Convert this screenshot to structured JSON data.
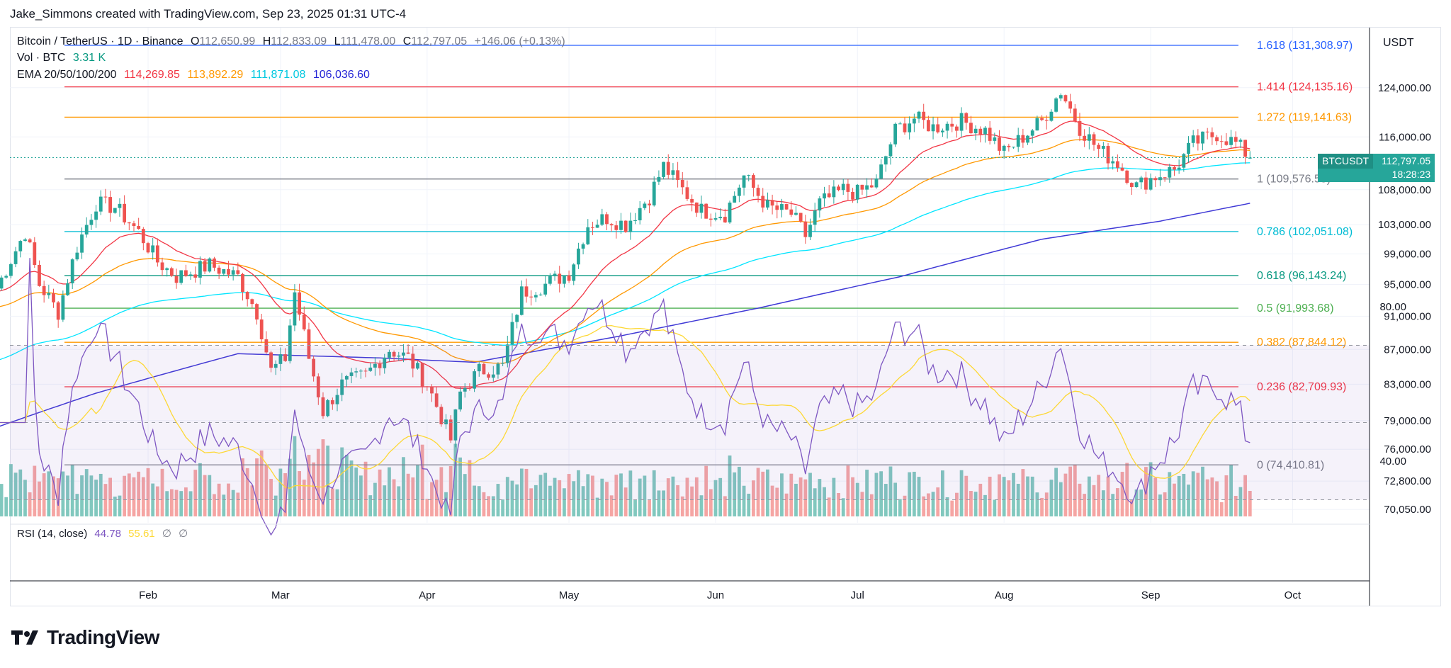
{
  "header": {
    "credit": "Jake_Simmons created with TradingView.com, Sep 23, 2025 01:31 UTC-4"
  },
  "legend": {
    "symbol": "Bitcoin / TetherUS · 1D · Binance",
    "o_label": "O",
    "o_val": "112,650.99",
    "h_label": "H",
    "h_val": "112,833.09",
    "l_label": "L",
    "l_val": "111,478.00",
    "c_label": "C",
    "c_val": "112,797.05",
    "change": "+146.06 (+0.13%)",
    "vol_label": "Vol · BTC",
    "vol_val": "3.31 K",
    "ema_label": "EMA 20/50/100/200",
    "ema20": "114,269.85",
    "ema50": "113,892.29",
    "ema100": "111,871.08",
    "ema200": "106,036.60",
    "rsi_label": "RSI (14, close)",
    "rsi_val": "44.78",
    "rsi_ma": "55.61",
    "rsi_x1": "∅",
    "rsi_x2": "∅"
  },
  "price_badge": {
    "symbol": "BTCUSDT",
    "price": "112,797.05",
    "countdown": "18:28:23"
  },
  "axis": {
    "currency": "USDT",
    "y_ticks": [
      {
        "label": "124,000.00",
        "v": 124000
      },
      {
        "label": "116,000.00",
        "v": 116000
      },
      {
        "label": "108,000.00",
        "v": 108000
      },
      {
        "label": "103,000.00",
        "v": 103000
      },
      {
        "label": "99,000.00",
        "v": 99000
      },
      {
        "label": "95,000.00",
        "v": 95000
      },
      {
        "label": "91,000.00",
        "v": 91000
      },
      {
        "label": "87,000.00",
        "v": 87000
      },
      {
        "label": "83,000.00",
        "v": 83000
      },
      {
        "label": "79,000.00",
        "v": 79000
      },
      {
        "label": "76,000.00",
        "v": 76000
      },
      {
        "label": "72,800.00",
        "v": 72800
      },
      {
        "label": "70,050.00",
        "v": 70050
      }
    ],
    "rsi_ticks": [
      {
        "label": "80.00",
        "v": 80
      },
      {
        "label": "40.00",
        "v": 40
      }
    ],
    "x_ticks": [
      {
        "label": "Feb",
        "d": 31
      },
      {
        "label": "Mar",
        "d": 59
      },
      {
        "label": "Apr",
        "d": 90
      },
      {
        "label": "May",
        "d": 120
      },
      {
        "label": "Jun",
        "d": 151
      },
      {
        "label": "Jul",
        "d": 181
      },
      {
        "label": "Aug",
        "d": 212
      },
      {
        "label": "Sep",
        "d": 243
      },
      {
        "label": "Oct",
        "d": 273
      }
    ]
  },
  "fib_levels": [
    {
      "label": "1.618 (131,308.97)",
      "v": 131308.97,
      "color": "#2962ff"
    },
    {
      "label": "1.414 (124,135.16)",
      "v": 124135.16,
      "color": "#f23645"
    },
    {
      "label": "1.272 (119,141.63)",
      "v": 119141.63,
      "color": "#ff9800"
    },
    {
      "label": "1 (109,576.55)",
      "v": 109576.55,
      "color": "#787b86"
    },
    {
      "label": "0.786 (102,051.08)",
      "v": 102051.08,
      "color": "#00bcd4"
    },
    {
      "label": "0.618 (96,143.24)",
      "v": 96143.24,
      "color": "#089981"
    },
    {
      "label": "0.5 (91,993.68)",
      "v": 91993.68,
      "color": "#4caf50"
    },
    {
      "label": "0.382 (87,844.12)",
      "v": 87844.12,
      "color": "#ff9800"
    },
    {
      "label": "0.236 (82,709.93)",
      "v": 82709.93,
      "color": "#f23645"
    },
    {
      "label": "0 (74,410.81)",
      "v": 74410.81,
      "color": "#787b86"
    }
  ],
  "colors": {
    "up": "#26a69a",
    "down": "#ef5350",
    "ema20": "#f23645",
    "ema50": "#ff9800",
    "ema100": "#00e5ff",
    "ema200": "#3f39d6",
    "rsi": "#7e57c2",
    "rsi_ma": "#fdd835"
  },
  "brand": {
    "name": "TradingView"
  },
  "chart_data": {
    "type": "candlestick",
    "title": "Bitcoin / TetherUS · 1D · Binance",
    "x_unit": "day of 2025 (0 = Jan 1)",
    "ylim": [
      68800,
      134500
    ],
    "log_scale": true,
    "grid": true,
    "key_points": [
      {
        "d": -1,
        "c": 94500
      },
      {
        "d": 5,
        "c": 102000
      },
      {
        "d": 8,
        "c": 95000
      },
      {
        "d": 12,
        "c": 91500
      },
      {
        "d": 16,
        "c": 100000
      },
      {
        "d": 20,
        "c": 106000
      },
      {
        "d": 24,
        "c": 105500
      },
      {
        "d": 29,
        "c": 102000
      },
      {
        "d": 33,
        "c": 98000
      },
      {
        "d": 37,
        "c": 96000
      },
      {
        "d": 44,
        "c": 97500
      },
      {
        "d": 50,
        "c": 96000
      },
      {
        "d": 54,
        "c": 91500
      },
      {
        "d": 57,
        "c": 84500
      },
      {
        "d": 60,
        "c": 86000
      },
      {
        "d": 62,
        "c": 94000
      },
      {
        "d": 65,
        "c": 86000
      },
      {
        "d": 68,
        "c": 80000
      },
      {
        "d": 72,
        "c": 83000
      },
      {
        "d": 77,
        "c": 84000
      },
      {
        "d": 82,
        "c": 87000
      },
      {
        "d": 86,
        "c": 86000
      },
      {
        "d": 90,
        "c": 83000
      },
      {
        "d": 95,
        "c": 77000
      },
      {
        "d": 97,
        "c": 82000
      },
      {
        "d": 101,
        "c": 84500
      },
      {
        "d": 106,
        "c": 85000
      },
      {
        "d": 110,
        "c": 94000
      },
      {
        "d": 115,
        "c": 95000
      },
      {
        "d": 120,
        "c": 96500
      },
      {
        "d": 124,
        "c": 103000
      },
      {
        "d": 128,
        "c": 104000
      },
      {
        "d": 132,
        "c": 103000
      },
      {
        "d": 137,
        "c": 107000
      },
      {
        "d": 140,
        "c": 111500
      },
      {
        "d": 144,
        "c": 108000
      },
      {
        "d": 148,
        "c": 105000
      },
      {
        "d": 153,
        "c": 104500
      },
      {
        "d": 157,
        "c": 110000
      },
      {
        "d": 162,
        "c": 105500
      },
      {
        "d": 167,
        "c": 104500
      },
      {
        "d": 170,
        "c": 101500
      },
      {
        "d": 173,
        "c": 106000
      },
      {
        "d": 178,
        "c": 108000
      },
      {
        "d": 181,
        "c": 107500
      },
      {
        "d": 185,
        "c": 109000
      },
      {
        "d": 189,
        "c": 117000
      },
      {
        "d": 193,
        "c": 119000
      },
      {
        "d": 197,
        "c": 117500
      },
      {
        "d": 203,
        "c": 118500
      },
      {
        "d": 208,
        "c": 117000
      },
      {
        "d": 212,
        "c": 113500
      },
      {
        "d": 216,
        "c": 116000
      },
      {
        "d": 220,
        "c": 118500
      },
      {
        "d": 224,
        "c": 123500
      },
      {
        "d": 228,
        "c": 117500
      },
      {
        "d": 232,
        "c": 114000
      },
      {
        "d": 236,
        "c": 112000
      },
      {
        "d": 240,
        "c": 108500
      },
      {
        "d": 244,
        "c": 110000
      },
      {
        "d": 248,
        "c": 111000
      },
      {
        "d": 252,
        "c": 115000
      },
      {
        "d": 257,
        "c": 116500
      },
      {
        "d": 261,
        "c": 115000
      },
      {
        "d": 264,
        "c": 112797
      }
    ],
    "ema_200_points": [
      {
        "d": -1,
        "c": 78300
      },
      {
        "d": 20,
        "c": 82000
      },
      {
        "d": 50,
        "c": 86500
      },
      {
        "d": 80,
        "c": 86000
      },
      {
        "d": 100,
        "c": 85500
      },
      {
        "d": 130,
        "c": 88500
      },
      {
        "d": 160,
        "c": 92000
      },
      {
        "d": 190,
        "c": 96000
      },
      {
        "d": 220,
        "c": 101000
      },
      {
        "d": 245,
        "c": 103500
      },
      {
        "d": 264,
        "c": 106036.6
      }
    ],
    "last": {
      "open": 112650.99,
      "high": 112833.09,
      "low": 111478.0,
      "close": 112797.05
    },
    "ema_last": {
      "ema20": 114269.85,
      "ema50": 113892.29,
      "ema100": 111871.08,
      "ema200": 106036.6
    },
    "rsi_last": {
      "rsi": 44.78,
      "ma": 55.61
    }
  }
}
